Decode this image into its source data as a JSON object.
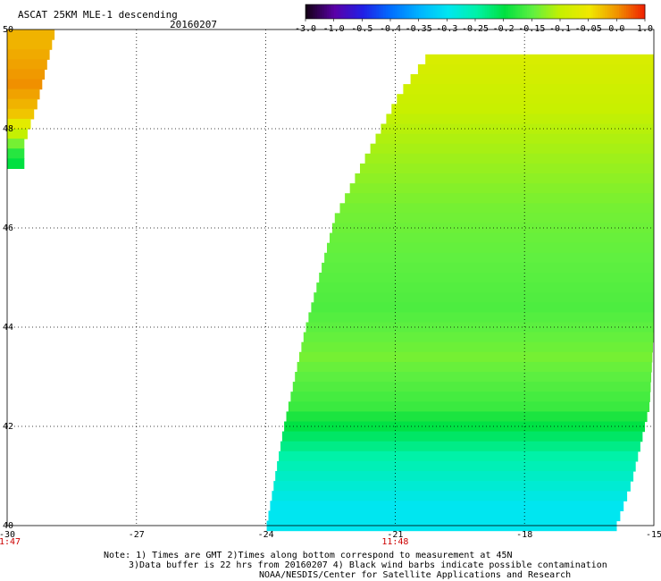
{
  "header": {
    "title": "ASCAT 25KM MLE-1 descending",
    "date": "20160207"
  },
  "colorbar": {
    "ticks": [
      "-3.0",
      "-1.0",
      "-0.5",
      "-0.4",
      "-0.35",
      "-0.3",
      "-0.25",
      "-0.2",
      "-0.15",
      "-0.1",
      "-0.05",
      "0.0",
      "1.0"
    ],
    "colors": [
      "#150018",
      "#5a00a8",
      "#2020e6",
      "#0070ff",
      "#00b4ff",
      "#00e6f0",
      "#00f2a8",
      "#00e040",
      "#60f040",
      "#c8f000",
      "#f0e800",
      "#f09000",
      "#f01a00"
    ]
  },
  "footer": {
    "line1": "Note: 1) Times are GMT 2)Times along bottom correspond to measurement at 45N",
    "line2": "3)Data buffer is 22 hrs from 20160207 4) Black wind barbs indicate possible contamination",
    "line3": "NOAA/NESDIS/Center for Satellite Applications and Research"
  },
  "chart_data": {
    "type": "heatmap",
    "title": "ASCAT 25KM MLE-1 descending",
    "date": "20160207",
    "xlim": [
      -30,
      -15
    ],
    "ylim": [
      40,
      50
    ],
    "x_ticks": [
      -30,
      -27,
      -24,
      -21,
      -18,
      -15
    ],
    "x_tick_labels": [
      "-30",
      "-27",
      "-24",
      "-21",
      "-18",
      "-15"
    ],
    "y_ticks": [
      40,
      42,
      44,
      46,
      48,
      50
    ],
    "y_tick_labels": [
      "40",
      "42",
      "44",
      "46",
      "48",
      "50"
    ],
    "time_labels": [
      {
        "lon": -30,
        "text": "11:47"
      },
      {
        "lon": -21,
        "text": "11:48"
      }
    ],
    "grid": true,
    "colorbar_range": [
      -3.0,
      1.0
    ],
    "swaths": [
      {
        "name": "",
        "left_edge": [
          [
            50,
            -30
          ],
          [
            48,
            -30
          ],
          [
            47.4,
            -30
          ]
        ],
        "right_edge": [
          [
            50,
            -28.9
          ],
          [
            48.6,
            -29.3
          ],
          [
            47.8,
            -29.6
          ],
          [
            47.4,
            -29.6
          ]
        ],
        "value_rows": [
          {
            "lat": 49.8,
            "value": -0.02
          },
          {
            "lat": 49.0,
            "value": 0.0
          },
          {
            "lat": 48.4,
            "value": -0.03
          },
          {
            "lat": 47.9,
            "value": -0.12
          },
          {
            "lat": 47.5,
            "value": -0.2
          }
        ]
      },
      {
        "name": "",
        "left_edge": [
          [
            49.5,
            -20.3
          ],
          [
            48.8,
            -20.9
          ],
          [
            47.5,
            -21.7
          ],
          [
            46.3,
            -22.4
          ],
          [
            44.0,
            -23.1
          ],
          [
            42.0,
            -23.6
          ],
          [
            40.0,
            -24.0
          ]
        ],
        "right_edge": [
          [
            50.0,
            -15.0
          ],
          [
            44.0,
            -15.0
          ],
          [
            42.5,
            -15.1
          ],
          [
            41.0,
            -15.5
          ],
          [
            40.0,
            -15.9
          ]
        ],
        "value_rows": [
          {
            "lat": 49.5,
            "value": -0.08
          },
          {
            "lat": 48.5,
            "value": -0.1
          },
          {
            "lat": 47.5,
            "value": -0.12
          },
          {
            "lat": 46.5,
            "value": -0.14
          },
          {
            "lat": 45.5,
            "value": -0.15
          },
          {
            "lat": 44.5,
            "value": -0.16
          },
          {
            "lat": 43.5,
            "value": -0.14
          },
          {
            "lat": 42.5,
            "value": -0.17
          },
          {
            "lat": 41.5,
            "value": -0.25
          },
          {
            "lat": 40.5,
            "value": -0.3
          }
        ]
      }
    ]
  }
}
